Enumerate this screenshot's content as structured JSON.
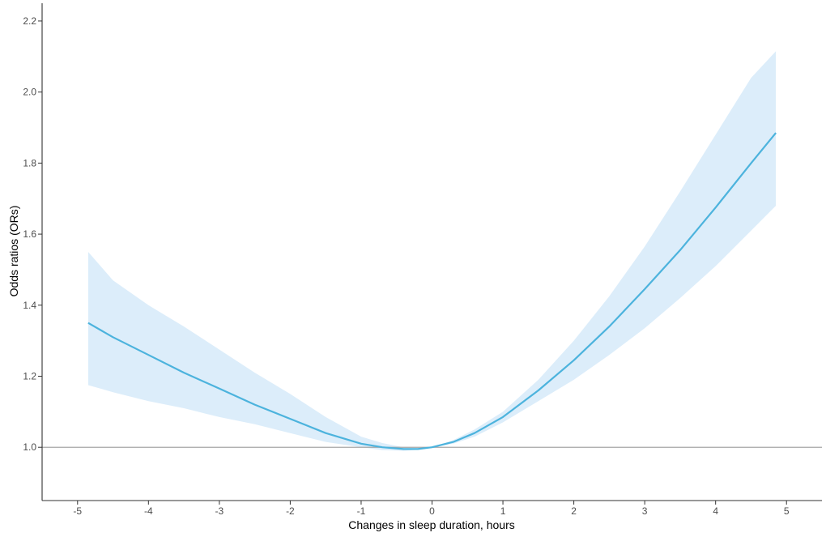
{
  "chart_data": {
    "type": "line",
    "title": "",
    "xlabel": "Changes in sleep duration, hours",
    "ylabel": "Odds ratios (ORs)",
    "xlim": [
      -5.5,
      5.5
    ],
    "ylim": [
      0.85,
      2.25
    ],
    "x_ticks": [
      -5,
      -4,
      -3,
      -2,
      -1,
      0,
      1,
      2,
      3,
      4,
      5
    ],
    "x_tick_labels": [
      "-5",
      "-4",
      "-3",
      "-2",
      "-1",
      "0",
      "1",
      "2",
      "3",
      "4",
      "5"
    ],
    "y_ticks": [
      1.0,
      1.2,
      1.4,
      1.6,
      1.8,
      2.0,
      2.2
    ],
    "y_tick_labels": [
      "1.0",
      "1.2",
      "1.4",
      "1.6",
      "1.8",
      "2.0",
      "2.2"
    ],
    "reference_line": 1.0,
    "grid": false,
    "colors": {
      "line": "#4cb3dd",
      "band": "#dcedfa",
      "reference": "#a6a6a6",
      "axis": "#333333"
    },
    "series": [
      {
        "x": [
          -4.85,
          -4.5,
          -4.0,
          -3.5,
          -3.0,
          -2.5,
          -2.0,
          -1.5,
          -1.0,
          -0.7,
          -0.4,
          -0.2,
          0.0,
          0.3,
          0.6,
          1.0,
          1.5,
          2.0,
          2.5,
          3.0,
          3.5,
          4.0,
          4.5,
          4.85
        ],
        "y": [
          1.35,
          1.31,
          1.26,
          1.21,
          1.165,
          1.12,
          1.08,
          1.04,
          1.01,
          1.0,
          0.995,
          0.995,
          1.0,
          1.015,
          1.04,
          1.085,
          1.16,
          1.245,
          1.34,
          1.445,
          1.555,
          1.675,
          1.8,
          1.885
        ],
        "lower": [
          1.175,
          1.155,
          1.13,
          1.11,
          1.085,
          1.065,
          1.04,
          1.015,
          1.0,
          0.992,
          0.99,
          0.993,
          1.0,
          1.01,
          1.03,
          1.07,
          1.13,
          1.19,
          1.26,
          1.335,
          1.42,
          1.51,
          1.61,
          1.68
        ],
        "upper": [
          1.55,
          1.47,
          1.4,
          1.34,
          1.275,
          1.21,
          1.15,
          1.085,
          1.03,
          1.012,
          1.0,
          0.998,
          1.0,
          1.02,
          1.05,
          1.1,
          1.19,
          1.3,
          1.425,
          1.565,
          1.72,
          1.88,
          2.04,
          2.115
        ]
      }
    ]
  }
}
